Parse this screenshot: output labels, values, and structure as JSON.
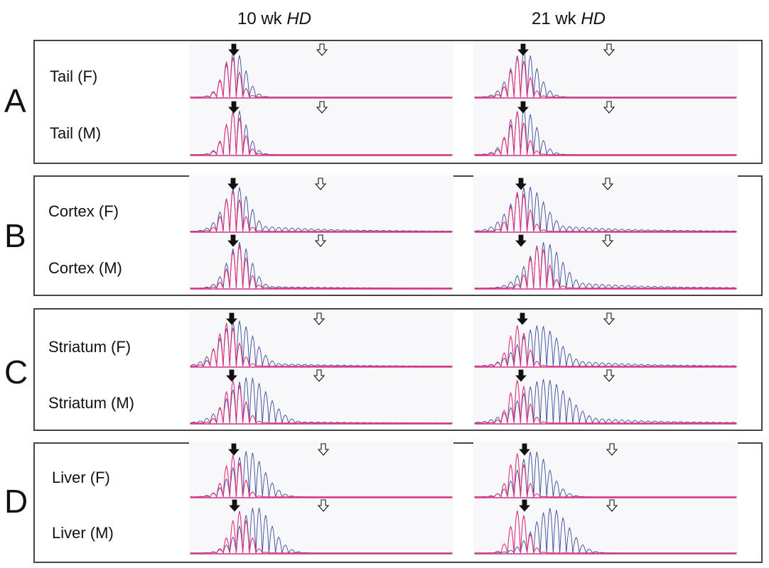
{
  "columns": [
    {
      "prefix": "10 wk ",
      "italic": "HD"
    },
    {
      "prefix": "21 wk ",
      "italic": "HD"
    }
  ],
  "panels": [
    {
      "letter": "A",
      "rows": [
        {
          "label": "Tail (F)",
          "traces": [
            {
              "pink": {
                "center": 5.7,
                "width": 1.3,
                "amp": 0.8
              },
              "blue": {
                "center": 6.3,
                "width": 1.6,
                "amp": 0.9,
                "tail": 0.0
              }
            },
            {
              "pink": {
                "center": 6.3,
                "width": 1.4,
                "amp": 0.8
              },
              "blue": {
                "center": 7.0,
                "width": 2.0,
                "amp": 0.92,
                "tail": 0.0
              }
            }
          ]
        },
        {
          "label": "Tail (M)",
          "traces": [
            {
              "pink": {
                "center": 6.2,
                "width": 1.4,
                "amp": 0.85
              },
              "blue": {
                "center": 6.5,
                "width": 1.6,
                "amp": 0.9,
                "tail": 0.0
              }
            },
            {
              "pink": {
                "center": 5.9,
                "width": 1.4,
                "amp": 0.85
              },
              "blue": {
                "center": 6.9,
                "width": 2.0,
                "amp": 0.92,
                "tail": 0.0
              }
            }
          ]
        }
      ]
    },
    {
      "letter": "B",
      "rows": [
        {
          "label": "Cortex (F)",
          "traces": [
            {
              "pink": {
                "center": 6.0,
                "width": 1.4,
                "amp": 0.8
              },
              "blue": {
                "center": 6.6,
                "width": 2.0,
                "amp": 0.88,
                "tail": 0.15
              }
            },
            {
              "pink": {
                "center": 6.4,
                "width": 1.4,
                "amp": 0.8
              },
              "blue": {
                "center": 7.6,
                "width": 2.6,
                "amp": 0.88,
                "tail": 0.18
              }
            }
          ]
        },
        {
          "label": "Cortex (M)",
          "traces": [
            {
              "pink": {
                "center": 6.8,
                "width": 1.4,
                "amp": 0.85
              },
              "blue": {
                "center": 7.0,
                "width": 1.8,
                "amp": 0.9,
                "tail": 0.05
              }
            },
            {
              "pink": {
                "center": 9.3,
                "width": 1.5,
                "amp": 0.85
              },
              "blue": {
                "center": 10.2,
                "width": 2.6,
                "amp": 0.9,
                "tail": 0.18
              }
            }
          ]
        }
      ]
    },
    {
      "letter": "C",
      "rows": [
        {
          "label": "Striatum (F)",
          "traces": [
            {
              "pink": {
                "center": 5.2,
                "width": 1.6,
                "amp": 0.85
              },
              "blue": {
                "center": 6.6,
                "width": 2.6,
                "amp": 0.9,
                "tail": 0.1
              }
            },
            {
              "pink": {
                "center": 6.1,
                "width": 1.4,
                "amp": 0.8
              },
              "blue": {
                "center": 9.4,
                "width": 3.0,
                "amp": 0.8,
                "tail": 0.18
              }
            }
          ]
        },
        {
          "label": "Striatum (M)",
          "traces": [
            {
              "pink": {
                "center": 6.2,
                "width": 1.5,
                "amp": 0.85
              },
              "blue": {
                "center": 8.4,
                "width": 3.0,
                "amp": 0.9,
                "tail": 0.05
              }
            },
            {
              "pink": {
                "center": 6.2,
                "width": 1.4,
                "amp": 0.85
              },
              "blue": {
                "center": 10.2,
                "width": 3.6,
                "amp": 0.86,
                "tail": 0.2
              }
            }
          ]
        }
      ]
    },
    {
      "letter": "D",
      "rows": [
        {
          "label": "Liver (F)",
          "traces": [
            {
              "pink": {
                "center": 6.1,
                "width": 1.4,
                "amp": 0.82
              },
              "blue": {
                "center": 8.3,
                "width": 2.4,
                "amp": 0.9,
                "tail": 0.0
              }
            },
            {
              "pink": {
                "center": 6.0,
                "width": 1.3,
                "amp": 0.85
              },
              "blue": {
                "center": 8.5,
                "width": 2.4,
                "amp": 0.9,
                "tail": 0.0
              }
            }
          ]
        },
        {
          "label": "Liver (M)",
          "traces": [
            {
              "pink": {
                "center": 7.0,
                "width": 1.4,
                "amp": 0.82
              },
              "blue": {
                "center": 9.5,
                "width": 2.4,
                "amp": 0.9,
                "tail": 0.0
              }
            },
            {
              "pink": {
                "center": 6.3,
                "width": 1.3,
                "amp": 0.85
              },
              "blue": {
                "center": 11.2,
                "width": 2.6,
                "amp": 0.88,
                "tail": 0.0
              }
            }
          ]
        }
      ]
    }
  ],
  "colors": {
    "pink": "#e0307a",
    "blue": "#3a4a9a",
    "frame": "#444444",
    "baseline": "#d0308a"
  }
}
